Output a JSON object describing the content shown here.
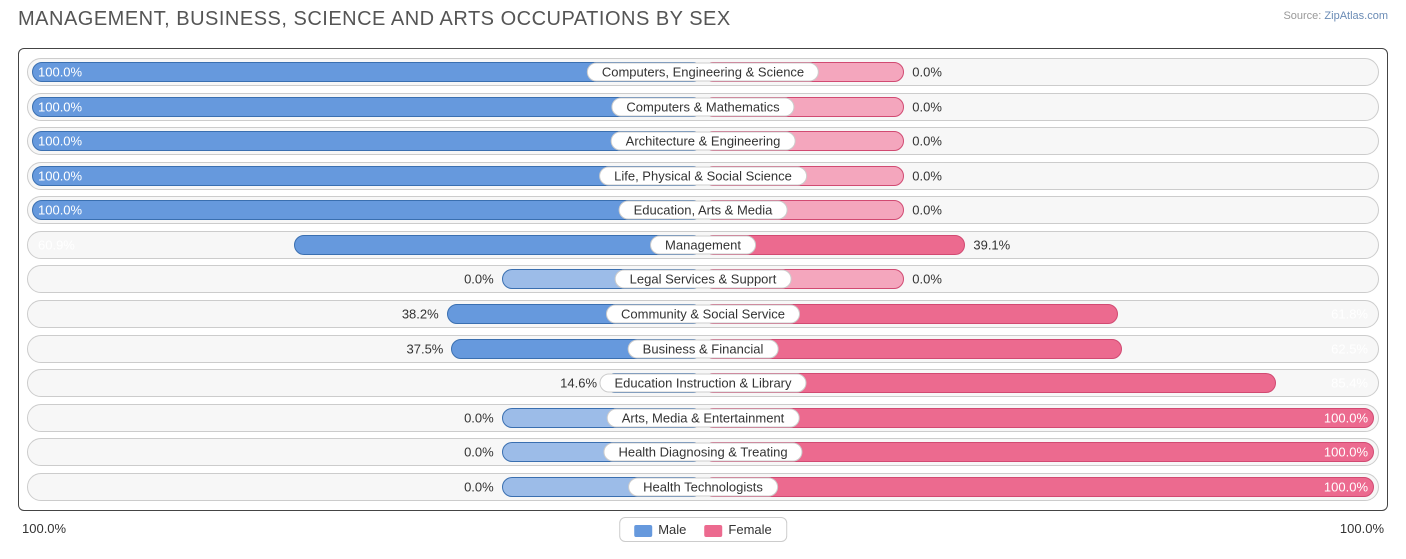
{
  "title": "MANAGEMENT, BUSINESS, SCIENCE AND ARTS OCCUPATIONS BY SEX",
  "source_label": "Source:",
  "source_name": "ZipAtlas.com",
  "axis_label_left": "100.0%",
  "axis_label_right": "100.0%",
  "colors": {
    "male_fill": "#6699dd",
    "male_faded": "#9cbce8",
    "male_border": "#3a6fb0",
    "female_fill": "#ec6a8f",
    "female_faded": "#f4a6bd",
    "female_border": "#d14a72",
    "row_bg": "#f7f7f7",
    "row_border": "#cccccc",
    "text": "#333333"
  },
  "legend": [
    {
      "label": "Male",
      "color": "#6699dd"
    },
    {
      "label": "Female",
      "color": "#ec6a8f"
    }
  ],
  "rows": [
    {
      "category": "Computers, Engineering & Science",
      "male": 100.0,
      "female": 0.0,
      "female_stub": 15
    },
    {
      "category": "Computers & Mathematics",
      "male": 100.0,
      "female": 0.0,
      "female_stub": 15
    },
    {
      "category": "Architecture & Engineering",
      "male": 100.0,
      "female": 0.0,
      "female_stub": 15
    },
    {
      "category": "Life, Physical & Social Science",
      "male": 100.0,
      "female": 0.0,
      "female_stub": 15
    },
    {
      "category": "Education, Arts & Media",
      "male": 100.0,
      "female": 0.0,
      "female_stub": 15
    },
    {
      "category": "Management",
      "male": 60.9,
      "female": 39.1
    },
    {
      "category": "Legal Services & Support",
      "male": 0.0,
      "female": 0.0,
      "male_stub": 15,
      "female_stub": 15
    },
    {
      "category": "Community & Social Service",
      "male": 38.2,
      "female": 61.8
    },
    {
      "category": "Business & Financial",
      "male": 37.5,
      "female": 62.5
    },
    {
      "category": "Education Instruction & Library",
      "male": 14.6,
      "female": 85.4
    },
    {
      "category": "Arts, Media & Entertainment",
      "male": 0.0,
      "female": 100.0,
      "male_stub": 15
    },
    {
      "category": "Health Diagnosing & Treating",
      "male": 0.0,
      "female": 100.0,
      "male_stub": 15
    },
    {
      "category": "Health Technologists",
      "male": 0.0,
      "female": 100.0,
      "male_stub": 15
    }
  ]
}
